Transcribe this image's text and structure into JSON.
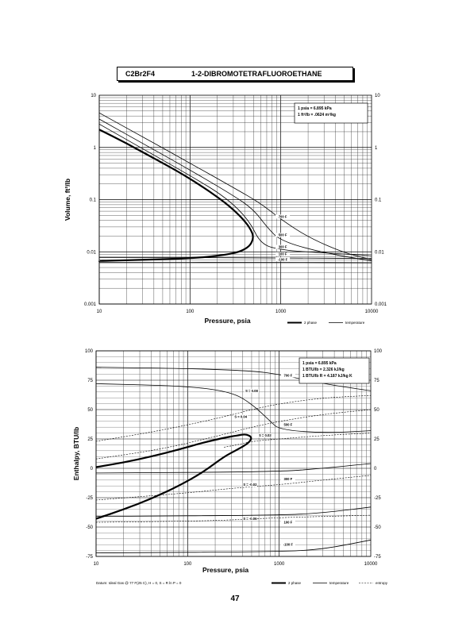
{
  "page": {
    "compound_code": "C2Br2F4",
    "compound_name": "1-2-DIBROMOTETRAFLUOROETHANE",
    "page_number": "47"
  },
  "chart_data": [
    {
      "type": "line",
      "xscale": "log",
      "yscale": "log",
      "xlabel": "Pressure,  psia",
      "ylabel": "Volume, ft^3/lb",
      "xlim": [
        10,
        10000
      ],
      "ylim": [
        0.001,
        10
      ],
      "x_ticks": [
        "10",
        "100",
        "1000",
        "10000"
      ],
      "y_ticks_left": [
        "0.001",
        "0.01",
        "0.1",
        "1",
        "10"
      ],
      "y_ticks_right": [
        "0.001",
        "0.01",
        "0.1",
        "1",
        "10"
      ],
      "grid": true,
      "conversion_box": [
        "1 psia = 6.895 kPa",
        "1 ft^3/lb = .0624 m^3/kg"
      ],
      "legend": [
        "2 phase",
        "temperature"
      ],
      "legend_placement": "bottom-right",
      "series": [
        {
          "kind": "2 phase",
          "x": [
            10,
            20,
            40,
            80,
            150,
            250,
            350,
            420,
            470,
            500,
            480,
            430,
            350,
            250,
            150,
            80,
            40,
            20,
            10
          ],
          "y": [
            2.2,
            1.2,
            0.62,
            0.32,
            0.16,
            0.085,
            0.05,
            0.035,
            0.026,
            0.02,
            0.015,
            0.012,
            0.01,
            0.0088,
            0.0079,
            0.0074,
            0.0071,
            0.0069,
            0.0067
          ]
        },
        {
          "kind": "temperature",
          "name": "700 F",
          "x": [
            10,
            30,
            100,
            300,
            600,
            1000,
            2000,
            5000,
            10000
          ],
          "y": [
            4.6,
            1.6,
            0.5,
            0.17,
            0.085,
            0.042,
            0.019,
            0.0095,
            0.0071
          ]
        },
        {
          "kind": "temperature",
          "name": "500 F",
          "x": [
            10,
            30,
            100,
            300,
            500,
            700,
            1000,
            3000,
            10000
          ],
          "y": [
            3.5,
            1.2,
            0.37,
            0.12,
            0.065,
            0.03,
            0.016,
            0.0095,
            0.0067
          ]
        },
        {
          "kind": "temperature",
          "name": "300 F",
          "x": [
            10,
            30,
            100,
            250,
            450,
            600,
            1000,
            3000,
            10000
          ],
          "y": [
            2.8,
            0.95,
            0.29,
            0.11,
            0.04,
            0.014,
            0.0108,
            0.0095,
            0.0085
          ]
        },
        {
          "kind": "temperature",
          "name": "100 F",
          "x": [
            10,
            1000,
            10000
          ],
          "y": [
            0.0078,
            0.0077,
            0.0074
          ]
        },
        {
          "kind": "temperature",
          "name": "-100 F",
          "x": [
            10,
            1000,
            10000
          ],
          "y": [
            0.0063,
            0.0063,
            0.0062
          ]
        }
      ]
    },
    {
      "type": "line",
      "xscale": "log",
      "xlabel": "Pressure,  psia",
      "ylabel": "Enthalpy, BTU/lb",
      "xlim": [
        10,
        10000
      ],
      "ylim": [
        -75,
        100
      ],
      "x_ticks": [
        "10",
        "100",
        "1000",
        "10000"
      ],
      "y_ticks_left": [
        "-75",
        "-50",
        "-25",
        "0",
        "25",
        "50",
        "75",
        "100"
      ],
      "y_ticks_right": [
        "-75",
        "-50",
        "-25",
        "0",
        "25",
        "50",
        "75",
        "100"
      ],
      "grid": true,
      "conversion_box": [
        "1 psia = 6.895 kPa",
        "1 BTU/lb = 2.326 kJ/kg",
        "1 BTU/lb R = 4.187 kJ/kg K"
      ],
      "legend": [
        "2 phase",
        "temperature",
        "entropy"
      ],
      "legend_placement": "bottom-right",
      "footnote": "Datum: Ideal Gas @ 77 F(25 C), H = 0, S = R ln P = 0",
      "series": [
        {
          "kind": "2 phase",
          "x": [
            10,
            20,
            40,
            80,
            150,
            250,
            350,
            420,
            470,
            500,
            480,
            430,
            350,
            250,
            150,
            80,
            40,
            20,
            10
          ],
          "y": [
            1,
            5,
            10,
            16,
            22,
            26,
            28,
            29,
            28,
            26,
            23,
            20,
            16,
            10,
            -3,
            -15,
            -26,
            -35,
            -43
          ]
        },
        {
          "kind": "temperature",
          "name": "700 F",
          "x": [
            10,
            100,
            500,
            1000,
            3000,
            10000
          ],
          "y": [
            86,
            85,
            83,
            80,
            72,
            66
          ]
        },
        {
          "kind": "temperature",
          "name": "500 F",
          "x": [
            10,
            100,
            300,
            500,
            800,
            1000,
            3000,
            10000
          ],
          "y": [
            72,
            70,
            65,
            55,
            40,
            33,
            30,
            32
          ]
        },
        {
          "kind": "temperature",
          "name": "300 F",
          "x": [
            10,
            1000,
            3000,
            10000
          ],
          "y": [
            -4,
            -3,
            0,
            4
          ]
        },
        {
          "kind": "temperature",
          "name": "100 F",
          "x": [
            10,
            1000,
            3000,
            10000
          ],
          "y": [
            -41,
            -40,
            -38,
            -33
          ]
        },
        {
          "kind": "temperature",
          "name": "-100 F",
          "x": [
            10,
            1000,
            3000,
            10000
          ],
          "y": [
            -72,
            -71,
            -69,
            -61
          ]
        },
        {
          "kind": "entropy",
          "name": "S = 0.08",
          "x": [
            10,
            50,
            200,
            500,
            1000,
            3000,
            10000
          ],
          "y": [
            23,
            32,
            42,
            50,
            55,
            60,
            62
          ]
        },
        {
          "kind": "entropy",
          "name": "S = 0.04",
          "x": [
            10,
            50,
            200,
            500,
            1000,
            3000,
            10000
          ],
          "y": [
            8,
            16,
            27,
            35,
            40,
            46,
            50
          ]
        },
        {
          "kind": "entropy",
          "name": "S = 0.02",
          "x": [
            250,
            350,
            500,
            1000,
            3000,
            10000
          ],
          "y": [
            18,
            20,
            23,
            25,
            28,
            30
          ]
        },
        {
          "kind": "entropy",
          "name": "S = -0.02",
          "x": [
            10,
            100,
            300,
            1000,
            3000,
            10000
          ],
          "y": [
            -27,
            -21,
            -17,
            -14,
            -10,
            -6
          ]
        },
        {
          "kind": "entropy",
          "name": "S = -0.06",
          "x": [
            10,
            100,
            300,
            1000,
            3000,
            10000
          ],
          "y": [
            -46,
            -45,
            -44,
            -42,
            -41,
            -40
          ]
        }
      ],
      "curve_labels": [
        {
          "text": "700 F",
          "x": 1250,
          "y": 78
        },
        {
          "text": "500 F",
          "x": 1250,
          "y": 36
        },
        {
          "text": "300 F",
          "x": 1250,
          "y": -10
        },
        {
          "text": "100 F",
          "x": 1250,
          "y": -47
        },
        {
          "text": "-100 F",
          "x": 1250,
          "y": -66
        },
        {
          "text": "S = 0.08",
          "x": 500,
          "y": 65
        },
        {
          "text": "S = 0.04",
          "x": 380,
          "y": 43
        },
        {
          "text": "S = 0.02",
          "x": 700,
          "y": 27
        },
        {
          "text": "S = -0.02",
          "x": 480,
          "y": -15
        },
        {
          "text": "S = -0.06",
          "x": 480,
          "y": -44
        }
      ]
    }
  ],
  "chart1_curve_labels": [
    {
      "text": "700 F",
      "x": 1050,
      "y": 0.045
    },
    {
      "text": "500 F",
      "x": 1050,
      "y": 0.02
    },
    {
      "text": "300 F",
      "x": 1050,
      "y": 0.0118
    },
    {
      "text": "100 F",
      "x": 1050,
      "y": 0.0086
    },
    {
      "text": "-100 F",
      "x": 1050,
      "y": 0.0068
    }
  ]
}
